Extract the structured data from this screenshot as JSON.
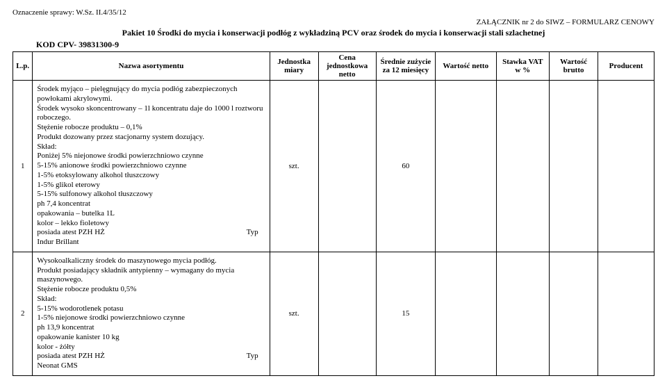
{
  "header": {
    "case_label": "Oznaczenie sprawy: W.Sz. II.4/35/12",
    "attachment": "ZAŁĄCZNIK nr 2 do SIWZ – FORMULARZ CENOWY",
    "pakiet_title": "Pakiet 10 Środki do mycia i konserwacji podłóg z wykładziną PCV oraz środek do mycia i konserwacji stali szlachetnej",
    "kod": "KOD CPV- 39831300-9"
  },
  "columns": {
    "lp": "L.p.",
    "name": "Nazwa asortymentu",
    "unit": "Jednostka miary",
    "price_unit": "Cena jednostkowa netto",
    "avg_use": "Średnie zużycie za 12 miesięcy",
    "value_net": "Wartość netto",
    "vat": "Stawka VAT w %",
    "value_gross": "Wartość brutto",
    "producer": "Producent"
  },
  "rows": [
    {
      "lp": "1",
      "desc_lines": [
        "Środek myjąco – pielęgnujący do mycia podłóg zabezpieczonych powłokami akrylowymi.",
        "Środek wysoko skoncentrowany – 1l koncentratu daje do 1000 l roztworu roboczego.",
        "Stężenie robocze produktu – 0,1%",
        "Produkt dozowany przez stacjonarny system dozujący.",
        "Skład:",
        "Poniżej 5% niejonowe środki powierzchniowo czynne",
        "5-15% anionowe środki powierzchniowo czynne",
        "1-5% etoksylowany alkohol tłuszczowy",
        "1-5% glikol eterowy",
        "5-15% sulfonowy alkohol tłuszczowy",
        "ph 7,4 koncentrat",
        "opakowania – butelka 1L",
        "kolor – lekko fioletowy",
        "posiada atest PZH HŻ",
        "Indur Brillant"
      ],
      "typ_label": "Typ",
      "unit": "szt.",
      "qty": "60"
    },
    {
      "lp": "2",
      "desc_lines": [
        "Wysokoalkaliczny środek do maszynowego mycia podłóg.",
        "Produkt posiadający składnik antypienny – wymagany do mycia maszynowego.",
        "Stężenie robocze produktu 0,5%",
        "Skład:",
        "5-15% wodorotlenek potasu",
        "1-5% niejonowe środki powierzchniowo czynne",
        "ph 13,9 koncentrat",
        "opakowanie kanister 10 kg",
        "kolor -  żółty",
        "posiada atest PZH HŻ",
        "Neonat GMS"
      ],
      "typ_label": "Typ",
      "unit": "szt.",
      "qty": "15"
    }
  ],
  "col_widths": {
    "lp": "26px",
    "name": "312px",
    "unit": "64px",
    "price_unit": "76px",
    "avg_use": "78px",
    "value_net": "80px",
    "vat": "70px",
    "value_gross": "64px",
    "producer": "74px"
  }
}
